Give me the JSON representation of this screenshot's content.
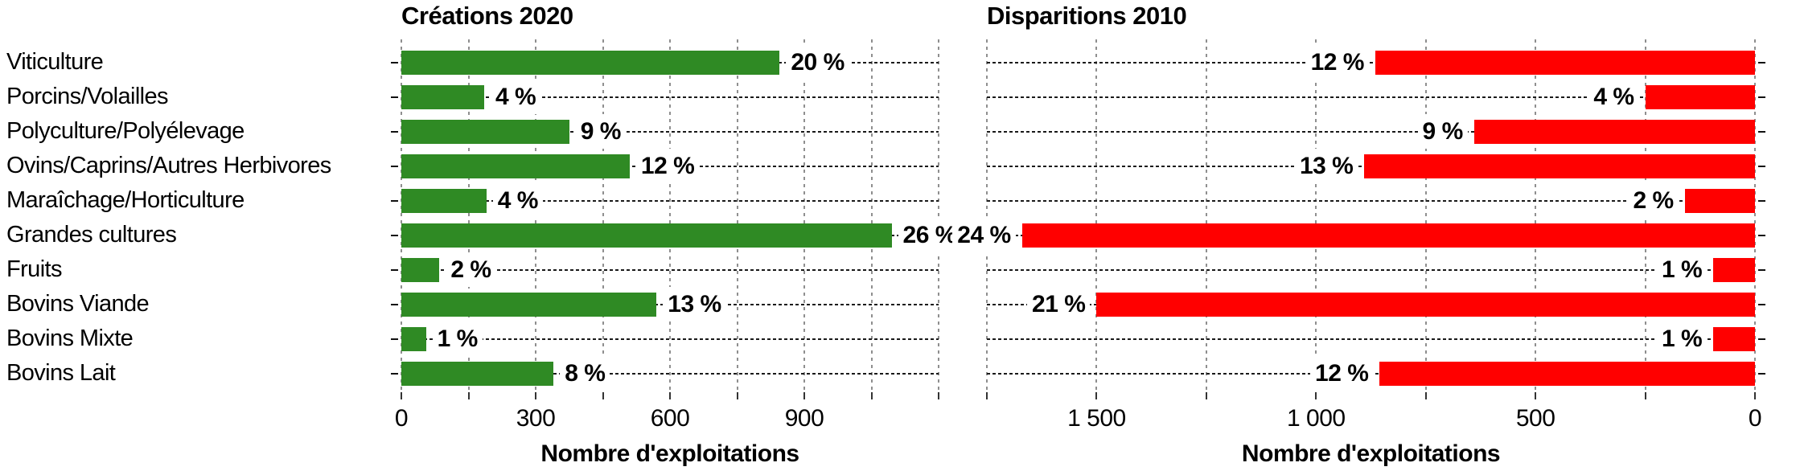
{
  "page": {
    "background": "#ffffff",
    "text_color": "#000000"
  },
  "chart_data": [
    {
      "type": "bar",
      "orientation": "horizontal",
      "title": "Créations 2020",
      "xlabel": "Nombre d'exploitations",
      "categories": [
        "Viticulture",
        "Porcins/Volailles",
        "Polyculture/Polyélevage",
        "Ovins/Caprins/Autres Herbivores",
        "Maraîchage/Horticulture",
        "Grandes cultures",
        "Fruits",
        "Bovins Viande",
        "Bovins Mixte",
        "Bovins Lait"
      ],
      "values": [
        845,
        185,
        375,
        510,
        190,
        1095,
        85,
        570,
        55,
        340
      ],
      "values_estimated_from_gridlines": true,
      "value_labels": [
        "20 %",
        "4 %",
        "9 %",
        "12 %",
        "4 %",
        "26 %",
        "2 %",
        "13 %",
        "1 %",
        "8 %"
      ],
      "value_label_position": "right-of-bar-end",
      "xlim": [
        0,
        1200
      ],
      "axis_reversed": false,
      "x_tick_values": [
        0,
        300,
        600,
        900
      ],
      "x_tick_labels": [
        "0",
        "300",
        "600",
        "900"
      ],
      "gridline_step": 150,
      "grid": true,
      "legend": "none",
      "bar_color": "#2F8A24"
    },
    {
      "type": "bar",
      "orientation": "horizontal",
      "title": "Disparitions 2010",
      "xlabel": "Nombre d'exploitations",
      "categories": [
        "Viticulture",
        "Porcins/Volailles",
        "Polyculture/Polyélevage",
        "Ovins/Caprins/Autres Herbivores",
        "Maraîchage/Horticulture",
        "Grandes cultures",
        "Fruits",
        "Bovins Viande",
        "Bovins Mixte",
        "Bovins Lait"
      ],
      "values": [
        865,
        250,
        640,
        890,
        160,
        1670,
        95,
        1500,
        95,
        855
      ],
      "values_estimated_from_gridlines": true,
      "value_labels": [
        "12 %",
        "4 %",
        "9 %",
        "13 %",
        "2 %",
        "24 %",
        "1 %",
        "21 %",
        "1 %",
        "12 %"
      ],
      "value_label_position": "left-of-bar-start",
      "xlim": [
        0,
        1750
      ],
      "axis_reversed": true,
      "x_tick_values": [
        1500,
        1000,
        500,
        0
      ],
      "x_tick_labels": [
        "1 500",
        "1 000",
        "500",
        "0"
      ],
      "gridline_step": 250,
      "grid": true,
      "legend": "none",
      "bar_color": "#FF0000"
    }
  ]
}
